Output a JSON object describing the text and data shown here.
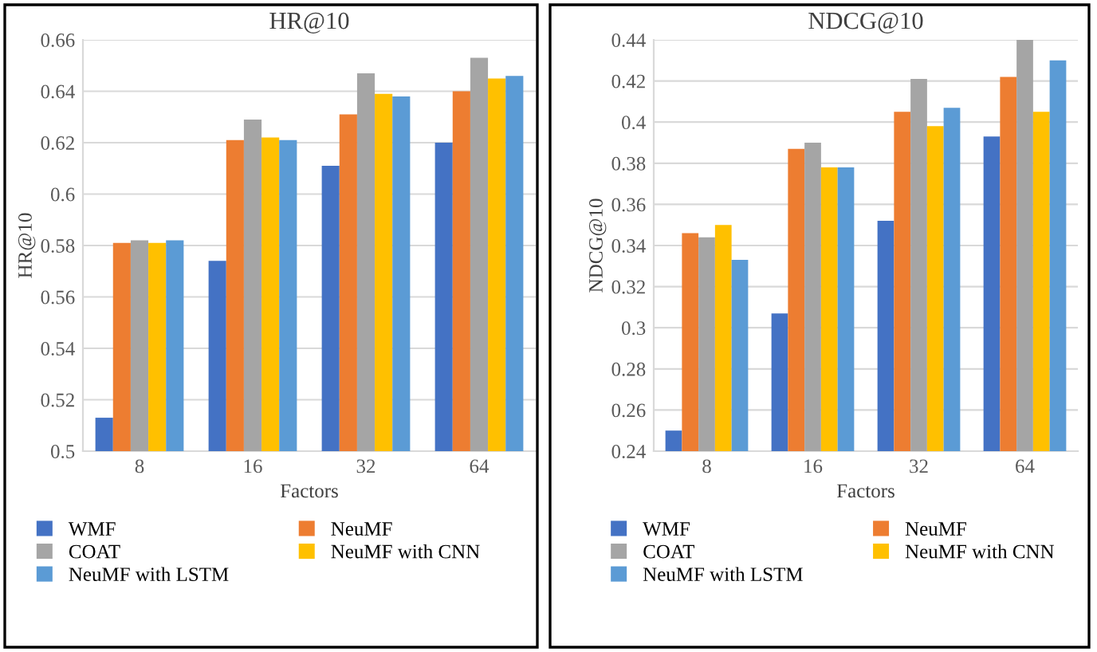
{
  "chart_data": [
    {
      "type": "bar",
      "title": "HR@10",
      "xlabel": "Factors",
      "ylabel": "HR@10",
      "categories": [
        "8",
        "16",
        "32",
        "64"
      ],
      "series": [
        {
          "name": "WMF",
          "color": "#4472c4",
          "values": [
            0.513,
            0.574,
            0.611,
            0.62
          ]
        },
        {
          "name": "NeuMF",
          "color": "#ed7d31",
          "values": [
            0.581,
            0.621,
            0.631,
            0.64
          ]
        },
        {
          "name": "COAT",
          "color": "#a5a5a5",
          "values": [
            0.582,
            0.629,
            0.647,
            0.653
          ]
        },
        {
          "name": "NeuMF with CNN",
          "color": "#ffc000",
          "values": [
            0.581,
            0.622,
            0.639,
            0.645
          ]
        },
        {
          "name": "NeuMF with LSTM",
          "color": "#5b9bd5",
          "values": [
            0.582,
            0.621,
            0.638,
            0.646
          ]
        }
      ],
      "ylim": [
        0.5,
        0.66
      ],
      "yticks": [
        0.5,
        0.52,
        0.54,
        0.56,
        0.58,
        0.6,
        0.62,
        0.64,
        0.66
      ],
      "grid": "y",
      "legend": "bottom"
    },
    {
      "type": "bar",
      "title": "NDCG@10",
      "xlabel": "Factors",
      "ylabel": "NDCG@10",
      "categories": [
        "8",
        "16",
        "32",
        "64"
      ],
      "series": [
        {
          "name": "WMF",
          "color": "#4472c4",
          "values": [
            0.25,
            0.307,
            0.352,
            0.393
          ]
        },
        {
          "name": "NeuMF",
          "color": "#ed7d31",
          "values": [
            0.346,
            0.387,
            0.405,
            0.422
          ]
        },
        {
          "name": "COAT",
          "color": "#a5a5a5",
          "values": [
            0.344,
            0.39,
            0.421,
            0.44
          ]
        },
        {
          "name": "NeuMF with CNN",
          "color": "#ffc000",
          "values": [
            0.35,
            0.378,
            0.398,
            0.405
          ]
        },
        {
          "name": "NeuMF with LSTM",
          "color": "#5b9bd5",
          "values": [
            0.333,
            0.378,
            0.407,
            0.43
          ]
        }
      ],
      "ylim": [
        0.24,
        0.44
      ],
      "yticks": [
        0.24,
        0.26,
        0.28,
        0.3,
        0.32,
        0.34,
        0.36,
        0.38,
        0.4,
        0.42,
        0.44
      ],
      "grid": "y",
      "legend": "bottom"
    }
  ]
}
